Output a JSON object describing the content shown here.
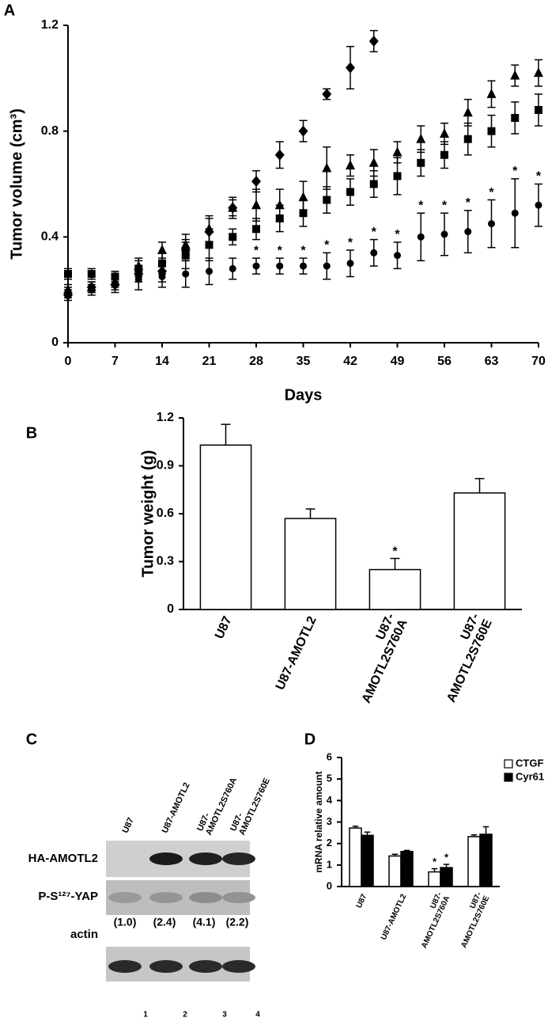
{
  "chart_data": [
    {
      "type": "scatter",
      "panel": "A",
      "ylabel": "Tumor volume (cm³)",
      "xlabel": "Days",
      "x": [
        0,
        3.5,
        7,
        10.5,
        14,
        17.5,
        21,
        24.5,
        28,
        31.5,
        35,
        38.5,
        42,
        45.5,
        49,
        52.5,
        56,
        59.5,
        63,
        66.5,
        70
      ],
      "xlim": [
        0,
        70
      ],
      "xticks": [
        0,
        7,
        14,
        21,
        28,
        35,
        42,
        49,
        56,
        63,
        70
      ],
      "ylim": [
        0,
        1.2
      ],
      "yticks": [
        0,
        0.4,
        0.8,
        1.2
      ],
      "series": [
        {
          "marker": "diamond",
          "color": "#000000",
          "values": [
            0.18,
            0.21,
            0.22,
            0.26,
            0.27,
            0.35,
            0.42,
            0.51,
            0.61,
            0.71,
            0.8,
            0.94,
            1.04,
            1.14,
            null,
            null,
            null,
            null,
            null,
            null,
            null
          ],
          "errors": [
            0.02,
            0.02,
            0.02,
            0.03,
            0.04,
            0.04,
            0.05,
            0.03,
            0.04,
            0.05,
            0.04,
            0.02,
            0.08,
            0.04,
            null,
            null,
            null,
            null,
            null,
            null,
            null
          ]
        },
        {
          "marker": "triangle",
          "color": "#000000",
          "values": [
            0.2,
            0.21,
            0.23,
            0.29,
            0.35,
            0.37,
            0.43,
            0.51,
            0.52,
            0.52,
            0.55,
            0.66,
            0.67,
            0.68,
            0.72,
            0.77,
            0.79,
            0.87,
            0.94,
            1.01,
            1.02
          ],
          "errors": [
            0.02,
            0.02,
            0.02,
            0.03,
            0.03,
            0.04,
            0.05,
            0.04,
            0.06,
            0.06,
            0.06,
            0.08,
            0.04,
            0.05,
            0.04,
            0.05,
            0.04,
            0.05,
            0.05,
            0.04,
            0.05
          ]
        },
        {
          "marker": "square",
          "color": "#000000",
          "values": [
            0.26,
            0.26,
            0.25,
            0.28,
            0.3,
            0.33,
            0.37,
            0.4,
            0.43,
            0.47,
            0.49,
            0.54,
            0.57,
            0.6,
            0.63,
            0.68,
            0.71,
            0.77,
            0.8,
            0.85,
            0.88
          ],
          "errors": [
            0.02,
            0.02,
            0.02,
            0.03,
            0.04,
            0.05,
            0.06,
            0.03,
            0.04,
            0.05,
            0.05,
            0.05,
            0.05,
            0.05,
            0.07,
            0.05,
            0.05,
            0.06,
            0.06,
            0.06,
            0.06
          ]
        },
        {
          "marker": "circle",
          "color": "#000000",
          "values": [
            0.19,
            0.2,
            0.22,
            0.24,
            0.25,
            0.26,
            0.27,
            0.28,
            0.29,
            0.29,
            0.29,
            0.29,
            0.3,
            0.34,
            0.33,
            0.4,
            0.41,
            0.42,
            0.45,
            0.49,
            0.52
          ],
          "errors": [
            0.02,
            0.02,
            0.03,
            0.04,
            0.04,
            0.05,
            0.05,
            0.04,
            0.03,
            0.03,
            0.03,
            0.05,
            0.05,
            0.05,
            0.05,
            0.09,
            0.08,
            0.08,
            0.09,
            0.13,
            0.08
          ],
          "annotations": [
            null,
            null,
            null,
            null,
            null,
            null,
            null,
            null,
            "*",
            "*",
            "*",
            "*",
            "*",
            "*",
            "*",
            "*",
            "*",
            "*",
            "*",
            "*",
            "*"
          ]
        }
      ]
    },
    {
      "type": "bar",
      "panel": "B",
      "ylabel": "Tumor weight (g)",
      "categories": [
        [
          "U87"
        ],
        [
          "U87-AMOTL2"
        ],
        [
          "U87-",
          "AMOTL2S760A"
        ],
        [
          "U87-",
          "AMOTL2S760E"
        ]
      ],
      "values": [
        1.03,
        0.57,
        0.25,
        0.73
      ],
      "errors": [
        0.13,
        0.06,
        0.07,
        0.09
      ],
      "annotations": [
        null,
        null,
        "*",
        null
      ],
      "color": "#ffffff",
      "ylim": [
        0,
        1.2
      ],
      "yticks": [
        0,
        0.3,
        0.6,
        0.9,
        1.2
      ]
    },
    {
      "type": "bar",
      "panel": "D",
      "ylabel": "mRNA relative amount",
      "categories": [
        [
          "U87"
        ],
        [
          "U87-AMOTL2"
        ],
        [
          "U87-",
          "AMOTL2S760A"
        ],
        [
          "U87-",
          "AMOTL2S760E"
        ]
      ],
      "series": [
        {
          "name": "CTGF",
          "color": "#ffffff",
          "values": [
            2.72,
            1.42,
            0.68,
            2.32
          ],
          "errors": [
            0.08,
            0.08,
            0.15,
            0.08
          ],
          "annotations": [
            null,
            null,
            "*",
            null
          ]
        },
        {
          "name": "Cyr61",
          "color": "#000000",
          "values": [
            2.38,
            1.63,
            0.88,
            2.43
          ],
          "errors": [
            0.15,
            0.05,
            0.15,
            0.35
          ],
          "annotations": [
            null,
            null,
            "*",
            null
          ]
        }
      ],
      "legend": "top-right",
      "ylim": [
        0,
        6
      ],
      "yticks": [
        0,
        1,
        2,
        3,
        4,
        5,
        6
      ]
    }
  ],
  "blot": {
    "panel": "C",
    "lanes": [
      [
        "U87"
      ],
      [
        "U87-AMOTL2"
      ],
      [
        "U87-",
        "AMOTL2S760A"
      ],
      [
        "U87-",
        "AMOTL2S760E"
      ]
    ],
    "rows": [
      "HA-AMOTL2",
      "P-S¹²⁷-YAP",
      "actin"
    ],
    "ratios": [
      "(1.0)",
      "(2.4)",
      "(4.1)",
      "(2.2)"
    ],
    "lane_numbers": [
      1,
      2,
      3,
      4
    ]
  }
}
